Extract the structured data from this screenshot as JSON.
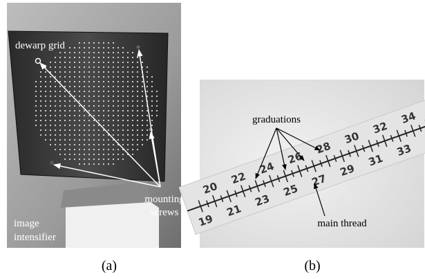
{
  "panel_a": {
    "caption": "(a)",
    "labels": [
      "dewarp grid",
      "mounting",
      "screws",
      "image",
      "intensifier"
    ]
  },
  "panel_b": {
    "caption": "(b)",
    "labels": [
      "graduations",
      "main thread"
    ],
    "ruler_top": [
      "20",
      "22",
      "24",
      "26",
      "28",
      "30",
      "32",
      "34"
    ],
    "ruler_bottom": [
      "19",
      "21",
      "23",
      "25",
      "27",
      "29",
      "31",
      "33"
    ]
  }
}
